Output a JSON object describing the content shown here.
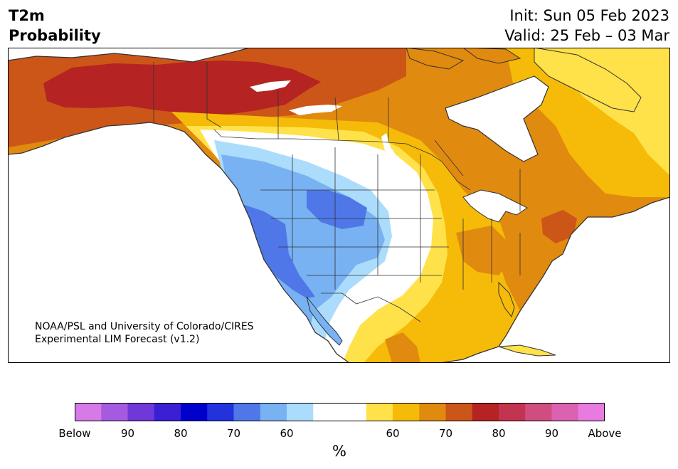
{
  "header": {
    "title_line1": "T2m",
    "title_line2": "Probability",
    "init": "Init: Sun 05 Feb 2023",
    "valid": "Valid: 25 Feb – 03 Mar"
  },
  "credit": {
    "line1": "NOAA/PSL and University of Colorado/CIRES",
    "line2": "Experimental LIM Forecast (v1.2)"
  },
  "colorbar": {
    "colors": [
      "#d67ae8",
      "#a55be0",
      "#7038d8",
      "#3a1fd4",
      "#0000cc",
      "#2233dd",
      "#4f77e8",
      "#78b2f2",
      "#acdcfb",
      "#ffffff",
      "#ffffff",
      "#ffe14a",
      "#f5bb08",
      "#e08a0f",
      "#cc5518",
      "#b52323",
      "#c2344f",
      "#d04e7f",
      "#db62b1",
      "#e87ae0"
    ],
    "tick_labels": [
      "Below",
      "90",
      "80",
      "70",
      "60",
      "60",
      "70",
      "80",
      "90",
      "Above"
    ],
    "unit": "%"
  },
  "map": {
    "colors": {
      "above_80": "#b52323",
      "above_70": "#cc5518",
      "above_65": "#e08a0f",
      "above_60": "#f5bb08",
      "above_55": "#ffe14a",
      "near_normal": "#ffffff",
      "below_55": "#acdcfb",
      "below_60": "#78b2f2",
      "below_65": "#4f77e8",
      "coast": "#333333"
    }
  }
}
